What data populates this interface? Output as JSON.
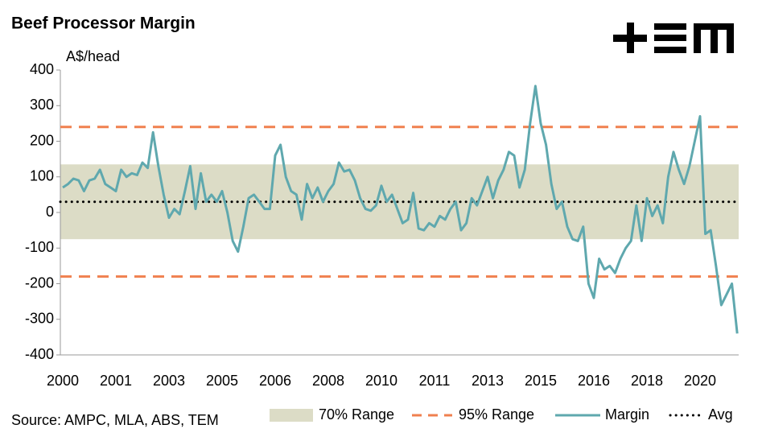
{
  "chart_data": {
    "type": "line",
    "title": "Beef Processor Margin",
    "y_label": "A$/head",
    "source": "Source: AMPC, MLA, ABS, TEM",
    "categories": [
      "2000",
      null,
      null,
      null,
      null,
      null,
      null,
      null,
      null,
      null,
      "2001",
      null,
      null,
      null,
      null,
      null,
      null,
      null,
      null,
      null,
      "2003",
      null,
      null,
      null,
      null,
      null,
      null,
      null,
      null,
      null,
      "2005",
      null,
      null,
      null,
      null,
      null,
      null,
      null,
      null,
      null,
      "2006",
      null,
      null,
      null,
      null,
      null,
      null,
      null,
      null,
      null,
      "2008",
      null,
      null,
      null,
      null,
      null,
      null,
      null,
      null,
      null,
      "2010",
      null,
      null,
      null,
      null,
      null,
      null,
      null,
      null,
      null,
      "2011",
      null,
      null,
      null,
      null,
      null,
      null,
      null,
      null,
      null,
      "2013",
      null,
      null,
      null,
      null,
      null,
      null,
      null,
      null,
      null,
      "2015",
      null,
      null,
      null,
      null,
      null,
      null,
      null,
      null,
      null,
      "2016",
      null,
      null,
      null,
      null,
      null,
      null,
      null,
      null,
      null,
      "2018",
      null,
      null,
      null,
      null,
      null,
      null,
      null,
      null,
      null,
      "2020",
      null,
      null,
      null,
      null,
      null,
      null,
      null
    ],
    "series": [
      {
        "name": "Margin",
        "color": "#5fa8ae",
        "values": [
          70,
          80,
          95,
          90,
          60,
          90,
          95,
          120,
          80,
          70,
          60,
          120,
          100,
          110,
          105,
          140,
          125,
          225,
          130,
          50,
          -15,
          10,
          -5,
          60,
          130,
          10,
          110,
          30,
          50,
          30,
          60,
          0,
          -80,
          -110,
          -40,
          40,
          50,
          30,
          10,
          10,
          160,
          190,
          100,
          60,
          50,
          -20,
          80,
          40,
          70,
          30,
          60,
          80,
          140,
          115,
          120,
          90,
          40,
          10,
          5,
          20,
          75,
          30,
          50,
          10,
          -30,
          -20,
          55,
          -45,
          -50,
          -30,
          -40,
          -10,
          -20,
          10,
          30,
          -50,
          -30,
          40,
          20,
          60,
          100,
          40,
          90,
          120,
          170,
          160,
          70,
          120,
          250,
          355,
          250,
          190,
          80,
          10,
          30,
          -40,
          -75,
          -80,
          -40,
          -200,
          -240,
          -130,
          -160,
          -150,
          -170,
          -130,
          -100,
          -80,
          20,
          -80,
          40,
          -10,
          20,
          -30,
          100,
          170,
          120,
          80,
          130,
          200,
          270,
          -60,
          -50,
          -150,
          -260,
          -230,
          -200,
          -340
        ]
      }
    ],
    "range_70": {
      "name": "70% Range",
      "color": "#dcdcc6",
      "values": [
        -75,
        135
      ]
    },
    "range_95": {
      "name": "95% Range",
      "color": "#f0804f",
      "values": [
        -180,
        240
      ]
    },
    "average": {
      "name": "Avg",
      "color": "#000000",
      "value": 30
    },
    "ylim": [
      -400,
      400
    ],
    "yticks": [
      400,
      300,
      200,
      100,
      0,
      -100,
      -200,
      -300,
      -400
    ]
  }
}
